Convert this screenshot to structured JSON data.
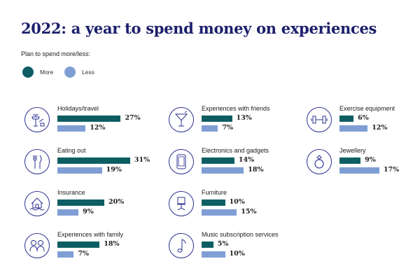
{
  "title": "2022: a year to spend money on experiences",
  "legend_title": "Plan to spend more/less:",
  "colors": {
    "more": "#0d5e63",
    "less": "#7f9fd4",
    "title": "#1c1f6b",
    "icon": "#2e3192"
  },
  "chart_data": {
    "type": "bar",
    "title": "2022: a year to spend money on experiences",
    "legend": [
      "More",
      "Less"
    ],
    "series": [
      {
        "name": "More",
        "values": [
          27,
          31,
          20,
          18,
          13,
          14,
          10,
          5,
          6,
          9
        ]
      },
      {
        "name": "Less",
        "values": [
          12,
          19,
          9,
          7,
          7,
          18,
          15,
          10,
          12,
          17
        ]
      }
    ],
    "categories": [
      "Holidays/travel",
      "Eating out",
      "Insurance",
      "Experiences with family",
      "Experiences with friends",
      "Electronics and gadgets",
      "Furniture",
      "Music subscription services",
      "Exercise equipment",
      "Jewellery"
    ],
    "icons": [
      "travel-icon",
      "cutlery-icon",
      "house-icon",
      "family-icon",
      "cocktail-icon",
      "tablet-icon",
      "chair-icon",
      "music-note-icon",
      "dumbbell-icon",
      "ring-icon"
    ],
    "value_labels": {
      "more": [
        "27%",
        "31%",
        "20%",
        "18%",
        "13%",
        "14%",
        "10%",
        "5%",
        "6%",
        "9%"
      ],
      "less": [
        "12%",
        "19%",
        "9%",
        "7%",
        "7%",
        "18%",
        "15%",
        "10%",
        "12%",
        "17%"
      ]
    }
  }
}
